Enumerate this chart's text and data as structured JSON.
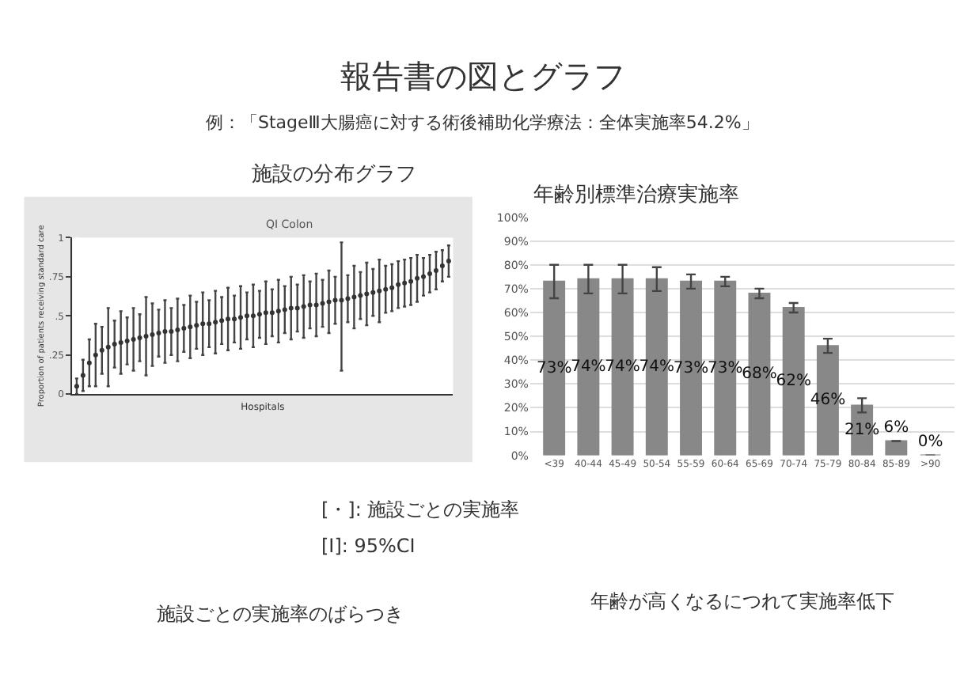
{
  "chart_data": [
    {
      "type": "scatter",
      "title": "施設の分布グラフ",
      "subtitle": "QI Colon",
      "xlabel": "Hospitals",
      "ylabel": "Proportion of patients receiving standard care",
      "categories": [
        null,
        null,
        null,
        null,
        null,
        null,
        null,
        null,
        null,
        null,
        null,
        null,
        null,
        null,
        null,
        null,
        null,
        null,
        null,
        null,
        null,
        null,
        null,
        null,
        null,
        null,
        null,
        null,
        null,
        null,
        null,
        null,
        null,
        null,
        null,
        null,
        null,
        null,
        null,
        null,
        null,
        null,
        null,
        null,
        null,
        null,
        null,
        null,
        null,
        null,
        null,
        null,
        null,
        null,
        null,
        null,
        null,
        null,
        null,
        null
      ],
      "values": [
        0.05,
        0.12,
        0.2,
        0.25,
        0.28,
        0.3,
        0.32,
        0.33,
        0.34,
        0.35,
        0.36,
        0.37,
        0.38,
        0.39,
        0.4,
        0.4,
        0.41,
        0.42,
        0.43,
        0.44,
        0.45,
        0.45,
        0.46,
        0.47,
        0.48,
        0.48,
        0.49,
        0.5,
        0.5,
        0.51,
        0.52,
        0.52,
        0.53,
        0.54,
        0.55,
        0.55,
        0.56,
        0.57,
        0.57,
        0.58,
        0.59,
        0.6,
        0.6,
        0.61,
        0.62,
        0.63,
        0.64,
        0.65,
        0.66,
        0.67,
        0.68,
        0.7,
        0.71,
        0.72,
        0.74,
        0.75,
        0.77,
        0.79,
        0.82,
        0.85
      ],
      "errors": [
        0.05,
        0.1,
        0.15,
        0.2,
        0.15,
        0.25,
        0.15,
        0.2,
        0.15,
        0.2,
        0.15,
        0.25,
        0.2,
        0.15,
        0.2,
        0.15,
        0.2,
        0.15,
        0.2,
        0.15,
        0.2,
        0.15,
        0.2,
        0.15,
        0.2,
        0.15,
        0.2,
        0.15,
        0.2,
        0.15,
        0.2,
        0.15,
        0.2,
        0.15,
        0.2,
        0.15,
        0.2,
        0.15,
        0.2,
        0.15,
        0.2,
        0.15,
        [
          0.15,
          0.97
        ],
        0.15,
        0.2,
        0.15,
        0.2,
        0.15,
        0.2,
        0.15,
        0.15,
        0.15,
        0.15,
        0.15,
        0.15,
        0.12,
        0.12,
        0.12,
        0.1,
        0.1
      ],
      "color": "#333333",
      "marker": "circle",
      "ylim": [
        0,
        1
      ],
      "yticks": [
        0,
        {
          "value": 0.25,
          "label": ".25"
        },
        {
          "value": 0.5,
          "label": ".5"
        },
        {
          "value": 0.75,
          "label": ".75"
        },
        1
      ],
      "grid": false,
      "annotations": [
        "報告書の図とグラフ",
        "例：「StageⅢ大腸癌に対する術後補助化学療法：全体実施率54.2%」",
        "[・]: 施設ごとの実施率",
        "[Ⅰ]: 95%CI",
        "施設ごとの実施率のばらつき"
      ]
    },
    {
      "type": "bar",
      "title": "年齢別標準治療実施率",
      "categories": [
        "<39",
        "40-44",
        "45-49",
        "50-54",
        "55-59",
        "60-64",
        "65-69",
        "70-74",
        "75-79",
        "80-84",
        "85-89",
        ">90"
      ],
      "values": [
        73,
        74,
        74,
        74,
        73,
        73,
        68,
        62,
        46,
        21,
        6,
        0
      ],
      "errors": [
        7,
        6,
        6,
        5,
        3,
        2,
        2,
        2,
        3,
        3,
        null,
        null
      ],
      "value_labels": [
        "73%",
        "74%",
        "74%",
        "74%",
        "73%",
        "73%",
        "68%",
        "62%",
        "46%",
        "21%",
        "6%",
        "0%"
      ],
      "color": "#888888",
      "ylim": [
        0,
        100
      ],
      "yticks": [
        {
          "value": 0,
          "label": "0%"
        },
        {
          "value": 10,
          "label": "10%"
        },
        {
          "value": 20,
          "label": "20%"
        },
        {
          "value": 30,
          "label": "30%"
        },
        {
          "value": 40,
          "label": "40%"
        },
        {
          "value": 50,
          "label": "50%"
        },
        {
          "value": 60,
          "label": "60%"
        },
        {
          "value": 70,
          "label": "70%"
        },
        {
          "value": 80,
          "label": "80%"
        },
        {
          "value": 90,
          "label": "90%"
        },
        {
          "value": 100,
          "label": "100%"
        }
      ],
      "grid": "y",
      "annotations": [
        "年齢が高くなるにつれて実施率低下"
      ]
    }
  ]
}
